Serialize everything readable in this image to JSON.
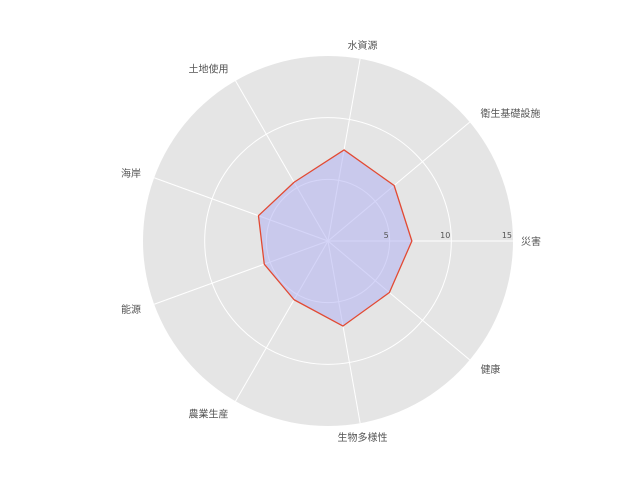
{
  "chart_data": {
    "type": "radar",
    "categories": [
      "災害",
      "衛生基礎設施",
      "水資源",
      "土地使用",
      "海岸",
      "能源",
      "農業生産",
      "生物多様性",
      "健康"
    ],
    "series": [
      {
        "values": [
          6.8,
          7.0,
          7.5,
          5.5,
          6.0,
          5.5,
          5.5,
          7.0,
          6.5
        ]
      }
    ],
    "rlim": [
      0,
      15
    ],
    "rticks": [
      5,
      10,
      15
    ],
    "rtick_labels": [
      "5",
      "10",
      "15"
    ],
    "grid": true,
    "colors": {
      "background_disc": "#e5e5e5",
      "gridline": "#ffffff",
      "series_line": "#e24a33",
      "series_fill": "#b3b3f2",
      "label_text": "#555555"
    }
  }
}
